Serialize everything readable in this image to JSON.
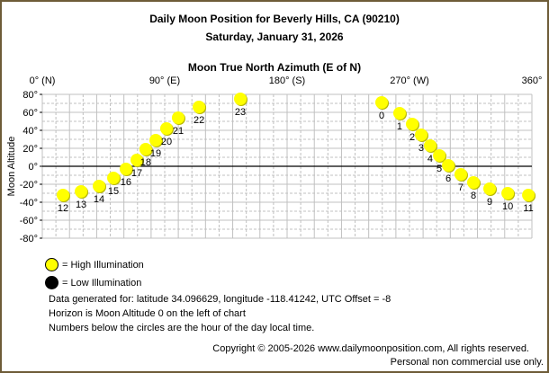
{
  "chart_data": {
    "type": "scatter",
    "title": "Daily Moon Position for Beverly Hills, CA (90210)",
    "subtitle": "Saturday, January 31, 2026",
    "xlabel": "Moon True North Azimuth (E of N)",
    "ylabel": "Moon Altitude",
    "xlim": [
      0,
      360
    ],
    "ylim": [
      -80,
      80
    ],
    "x_ticks": [
      "0° (N)",
      "90° (E)",
      "180° (S)",
      "270° (W)",
      "360°"
    ],
    "x_tick_values": [
      0,
      90,
      180,
      270,
      360
    ],
    "y_ticks": [
      "80°",
      "60°",
      "40°",
      "20°",
      "0°",
      "-20°",
      "-40°",
      "-60°",
      "-80°"
    ],
    "y_tick_values": [
      80,
      60,
      40,
      20,
      0,
      -20,
      -40,
      -60,
      -80
    ],
    "grid": true,
    "horizon_altitude": 0,
    "points": [
      {
        "hour": "0",
        "azimuth": 249.5,
        "altitude": 71,
        "illumination": "high"
      },
      {
        "hour": "1",
        "azimuth": 262.7,
        "altitude": 59,
        "illumination": "high"
      },
      {
        "hour": "2",
        "azimuth": 272,
        "altitude": 47,
        "illumination": "high"
      },
      {
        "hour": "3",
        "azimuth": 278.6,
        "altitude": 35,
        "illumination": "high"
      },
      {
        "hour": "4",
        "azimuth": 285.2,
        "altitude": 23,
        "illumination": "high"
      },
      {
        "hour": "5",
        "azimuth": 291.9,
        "altitude": 12,
        "illumination": "high"
      },
      {
        "hour": "6",
        "azimuth": 298.5,
        "altitude": 1,
        "illumination": "high"
      },
      {
        "hour": "7",
        "azimuth": 307.7,
        "altitude": -9,
        "illumination": "high"
      },
      {
        "hour": "8",
        "azimuth": 317,
        "altitude": -18,
        "illumination": "high"
      },
      {
        "hour": "9",
        "azimuth": 328.9,
        "altitude": -25,
        "illumination": "high"
      },
      {
        "hour": "10",
        "azimuth": 342.2,
        "altitude": -30,
        "illumination": "high"
      },
      {
        "hour": "11",
        "azimuth": 357.4,
        "altitude": -32,
        "illumination": "high"
      },
      {
        "hour": "12",
        "azimuth": 15.2,
        "altitude": -32,
        "illumination": "high"
      },
      {
        "hour": "13",
        "azimuth": 28.5,
        "altitude": -28,
        "illumination": "high"
      },
      {
        "hour": "14",
        "azimuth": 41.7,
        "altitude": -22,
        "illumination": "high"
      },
      {
        "hour": "15",
        "azimuth": 52.3,
        "altitude": -13,
        "illumination": "high"
      },
      {
        "hour": "16",
        "azimuth": 61.5,
        "altitude": -3,
        "illumination": "high"
      },
      {
        "hour": "17",
        "azimuth": 69.5,
        "altitude": 7,
        "illumination": "high"
      },
      {
        "hour": "18",
        "azimuth": 76,
        "altitude": 19,
        "illumination": "high"
      },
      {
        "hour": "19",
        "azimuth": 83.4,
        "altitude": 29,
        "illumination": "high"
      },
      {
        "hour": "20",
        "azimuth": 91.3,
        "altitude": 42,
        "illumination": "high"
      },
      {
        "hour": "21",
        "azimuth": 99.9,
        "altitude": 54,
        "illumination": "high"
      },
      {
        "hour": "22",
        "azimuth": 115.2,
        "altitude": 66,
        "illumination": "high"
      },
      {
        "hour": "23",
        "azimuth": 145.6,
        "altitude": 75,
        "illumination": "high"
      }
    ],
    "legend": [
      {
        "label": "= High Illumination",
        "color": "#ffff00"
      },
      {
        "label": "= Low Illumination",
        "color": "#000000"
      }
    ],
    "legend_placement": "bottom-left"
  },
  "notes": [
    "Data generated for: latitude 34.096629, longitude -118.41242, UTC Offset = -8",
    "Horizon is Moon Altitude 0 on the left of chart",
    "Numbers below the circles are the hour of the day local time."
  ],
  "copyright": "Copyright © 2005-2026 www.dailymoonposition.com, All rights reserved.",
  "usage": "Personal non commercial use only."
}
